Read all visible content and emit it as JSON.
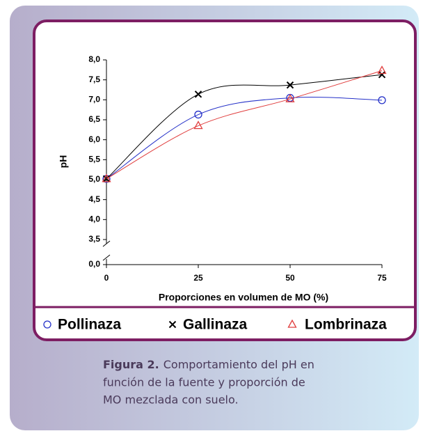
{
  "chart_data": {
    "type": "line",
    "y_label": "pH",
    "x_label": "Proporciones en volumen de MO (%)",
    "x": [
      0,
      25,
      50,
      75
    ],
    "xlim": [
      0,
      75
    ],
    "xticks": [
      0,
      25,
      50,
      75
    ],
    "ylim": [
      0,
      8
    ],
    "y_break": [
      0,
      3.5
    ],
    "yticks": [
      {
        "value": 0,
        "label": "0,0"
      },
      {
        "value": 3.5,
        "label": "3,5"
      },
      {
        "value": 4,
        "label": "4,0"
      },
      {
        "value": 4.5,
        "label": "4,5"
      },
      {
        "value": 5,
        "label": "5,0"
      },
      {
        "value": 5.5,
        "label": "5,5"
      },
      {
        "value": 6,
        "label": "6,0"
      },
      {
        "value": 6.5,
        "label": "6,5"
      },
      {
        "value": 7,
        "label": "7,0"
      },
      {
        "value": 7.5,
        "label": "7,5"
      },
      {
        "value": 8,
        "label": "8,0"
      }
    ],
    "series": [
      {
        "name": "Pollinaza",
        "color": "#2430c8",
        "marker": "circle",
        "values": [
          5.02,
          6.63,
          7.05,
          6.99
        ]
      },
      {
        "name": "Gallinaza",
        "color": "#000000",
        "marker": "x",
        "values": [
          5.02,
          7.14,
          7.37,
          7.63
        ]
      },
      {
        "name": "Lombrinaza",
        "color": "#e03c3c",
        "marker": "triangle",
        "values": [
          5.02,
          6.35,
          7.02,
          7.73
        ]
      }
    ],
    "caption": {
      "label": "Figura 2.",
      "lines": [
        "Comportamiento del pH en",
        "función de la fuente y proporción de",
        "MO mezclada con suelo."
      ]
    }
  }
}
